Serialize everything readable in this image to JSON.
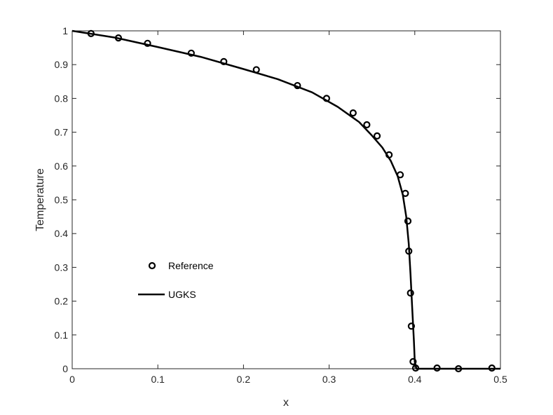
{
  "chart_data": {
    "type": "line",
    "xlabel": "x",
    "ylabel": "Temperature",
    "xlim": [
      0,
      0.5
    ],
    "ylim": [
      0,
      1
    ],
    "x_ticks": [
      "0",
      "0.1",
      "0.2",
      "0.3",
      "0.4",
      "0.5"
    ],
    "y_ticks": [
      "0",
      "0.1",
      "0.2",
      "0.3",
      "0.4",
      "0.5",
      "0.6",
      "0.7",
      "0.8",
      "0.9",
      "1"
    ],
    "grid": false,
    "box": true,
    "legend_position": "lower-left",
    "series": [
      {
        "name": "Reference",
        "style": "markers",
        "marker": "circle-open",
        "color": "#000000",
        "x": [
          0.022,
          0.054,
          0.088,
          0.139,
          0.177,
          0.215,
          0.263,
          0.297,
          0.328,
          0.344,
          0.356,
          0.37,
          0.383,
          0.389,
          0.392,
          0.393,
          0.395,
          0.396,
          0.398,
          0.401,
          0.426,
          0.451,
          0.49
        ],
        "y": [
          0.992,
          0.979,
          0.963,
          0.934,
          0.909,
          0.885,
          0.838,
          0.8,
          0.757,
          0.722,
          0.689,
          0.633,
          0.574,
          0.519,
          0.437,
          0.348,
          0.224,
          0.126,
          0.021,
          0.002,
          0.002,
          0.0,
          0.002
        ]
      },
      {
        "name": "UGKS",
        "style": "line",
        "color": "#000000",
        "x": [
          0.0,
          0.05,
          0.1,
          0.15,
          0.2,
          0.24,
          0.28,
          0.31,
          0.335,
          0.35,
          0.362,
          0.372,
          0.38,
          0.386,
          0.39,
          0.393,
          0.395,
          0.397,
          0.399,
          0.4,
          0.402,
          0.45,
          0.5
        ],
        "y": [
          1.0,
          0.98,
          0.952,
          0.923,
          0.887,
          0.857,
          0.818,
          0.775,
          0.73,
          0.69,
          0.655,
          0.615,
          0.57,
          0.515,
          0.45,
          0.37,
          0.28,
          0.18,
          0.08,
          0.02,
          0.0,
          0.0,
          0.0
        ]
      }
    ]
  }
}
